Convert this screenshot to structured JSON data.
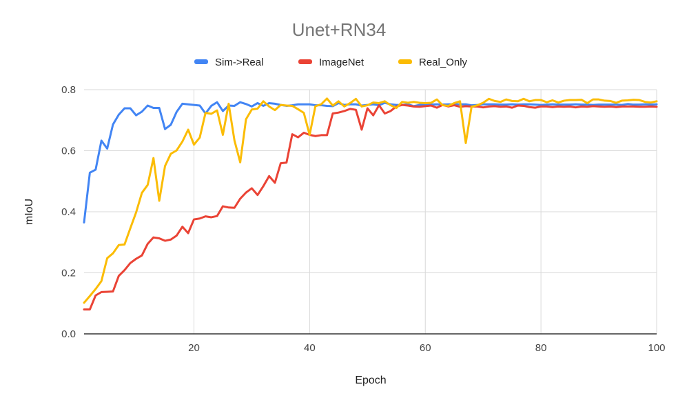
{
  "chart_data": {
    "type": "line",
    "title": "Unet+RN34",
    "xlabel": "Epoch",
    "ylabel": "mIoU",
    "xlim": [
      1,
      100
    ],
    "ylim": [
      0,
      0.8
    ],
    "x_ticks": [
      20,
      40,
      60,
      80,
      100
    ],
    "y_ticks": [
      0.0,
      0.2,
      0.4,
      0.6,
      0.8
    ],
    "x_tick_labels": [
      "20",
      "40",
      "60",
      "80",
      "100"
    ],
    "y_tick_labels": [
      "0.0",
      "0.2",
      "0.4",
      "0.6",
      "0.8"
    ],
    "grid": true,
    "legend_position": "top",
    "x": [
      1,
      2,
      3,
      4,
      5,
      6,
      7,
      8,
      9,
      10,
      11,
      12,
      13,
      14,
      15,
      16,
      17,
      18,
      19,
      20,
      21,
      22,
      23,
      24,
      25,
      26,
      27,
      28,
      29,
      30,
      31,
      32,
      33,
      34,
      35,
      36,
      37,
      38,
      39,
      40,
      41,
      42,
      43,
      44,
      45,
      46,
      47,
      48,
      49,
      50,
      51,
      52,
      53,
      54,
      55,
      56,
      57,
      58,
      59,
      60,
      61,
      62,
      63,
      64,
      65,
      66,
      67,
      68,
      69,
      70,
      71,
      72,
      73,
      74,
      75,
      76,
      77,
      78,
      79,
      80,
      81,
      82,
      83,
      84,
      85,
      86,
      87,
      88,
      89,
      90,
      91,
      92,
      93,
      94,
      95,
      96,
      97,
      98,
      99,
      100
    ],
    "series": [
      {
        "name": "Sim->Real",
        "color": "#4285f4",
        "values": [
          0.365,
          0.528,
          0.538,
          0.633,
          0.607,
          0.686,
          0.718,
          0.739,
          0.739,
          0.716,
          0.728,
          0.748,
          0.74,
          0.74,
          0.671,
          0.685,
          0.727,
          0.754,
          0.752,
          0.75,
          0.748,
          0.722,
          0.747,
          0.759,
          0.73,
          0.748,
          0.747,
          0.759,
          0.753,
          0.745,
          0.756,
          0.747,
          0.756,
          0.754,
          0.75,
          0.747,
          0.749,
          0.752,
          0.752,
          0.752,
          0.749,
          0.749,
          0.747,
          0.746,
          0.756,
          0.75,
          0.752,
          0.752,
          0.748,
          0.75,
          0.752,
          0.749,
          0.757,
          0.752,
          0.75,
          0.75,
          0.752,
          0.746,
          0.75,
          0.752,
          0.751,
          0.752,
          0.751,
          0.752,
          0.752,
          0.752,
          0.752,
          0.749,
          0.75,
          0.752,
          0.752,
          0.752,
          0.751,
          0.751,
          0.752,
          0.751,
          0.752,
          0.752,
          0.751,
          0.75,
          0.751,
          0.752,
          0.751,
          0.751,
          0.751,
          0.752,
          0.751,
          0.751,
          0.75,
          0.751,
          0.751,
          0.751,
          0.751,
          0.75,
          0.753,
          0.751,
          0.751,
          0.752,
          0.751,
          0.752
        ]
      },
      {
        "name": "ImageNet",
        "color": "#ea4335",
        "values": [
          0.08,
          0.08,
          0.126,
          0.137,
          0.138,
          0.139,
          0.19,
          0.209,
          0.232,
          0.246,
          0.257,
          0.295,
          0.316,
          0.313,
          0.305,
          0.309,
          0.322,
          0.351,
          0.33,
          0.375,
          0.378,
          0.385,
          0.382,
          0.386,
          0.418,
          0.414,
          0.413,
          0.443,
          0.463,
          0.477,
          0.455,
          0.484,
          0.517,
          0.495,
          0.559,
          0.561,
          0.654,
          0.644,
          0.659,
          0.652,
          0.648,
          0.651,
          0.651,
          0.722,
          0.725,
          0.73,
          0.737,
          0.734,
          0.669,
          0.739,
          0.716,
          0.749,
          0.722,
          0.73,
          0.745,
          0.75,
          0.748,
          0.745,
          0.744,
          0.746,
          0.748,
          0.741,
          0.75,
          0.745,
          0.749,
          0.744,
          0.746,
          0.745,
          0.745,
          0.742,
          0.745,
          0.746,
          0.744,
          0.745,
          0.741,
          0.748,
          0.747,
          0.743,
          0.741,
          0.745,
          0.745,
          0.743,
          0.745,
          0.744,
          0.745,
          0.742,
          0.745,
          0.744,
          0.746,
          0.745,
          0.744,
          0.745,
          0.743,
          0.745,
          0.745,
          0.745,
          0.744,
          0.744,
          0.745,
          0.744
        ]
      },
      {
        "name": "Real_Only",
        "color": "#fbbc04",
        "values": [
          0.102,
          0.124,
          0.147,
          0.173,
          0.248,
          0.264,
          0.291,
          0.293,
          0.346,
          0.398,
          0.462,
          0.488,
          0.576,
          0.436,
          0.55,
          0.59,
          0.601,
          0.63,
          0.669,
          0.62,
          0.643,
          0.724,
          0.721,
          0.732,
          0.652,
          0.754,
          0.634,
          0.562,
          0.703,
          0.735,
          0.738,
          0.762,
          0.745,
          0.733,
          0.75,
          0.748,
          0.747,
          0.736,
          0.724,
          0.652,
          0.746,
          0.752,
          0.771,
          0.748,
          0.762,
          0.745,
          0.756,
          0.77,
          0.745,
          0.749,
          0.758,
          0.756,
          0.762,
          0.749,
          0.74,
          0.76,
          0.757,
          0.76,
          0.757,
          0.756,
          0.757,
          0.768,
          0.749,
          0.747,
          0.756,
          0.762,
          0.625,
          0.744,
          0.749,
          0.757,
          0.77,
          0.763,
          0.76,
          0.768,
          0.763,
          0.762,
          0.77,
          0.762,
          0.766,
          0.766,
          0.759,
          0.765,
          0.758,
          0.764,
          0.766,
          0.766,
          0.767,
          0.756,
          0.768,
          0.768,
          0.764,
          0.763,
          0.757,
          0.764,
          0.765,
          0.767,
          0.766,
          0.76,
          0.758,
          0.762
        ]
      }
    ]
  }
}
